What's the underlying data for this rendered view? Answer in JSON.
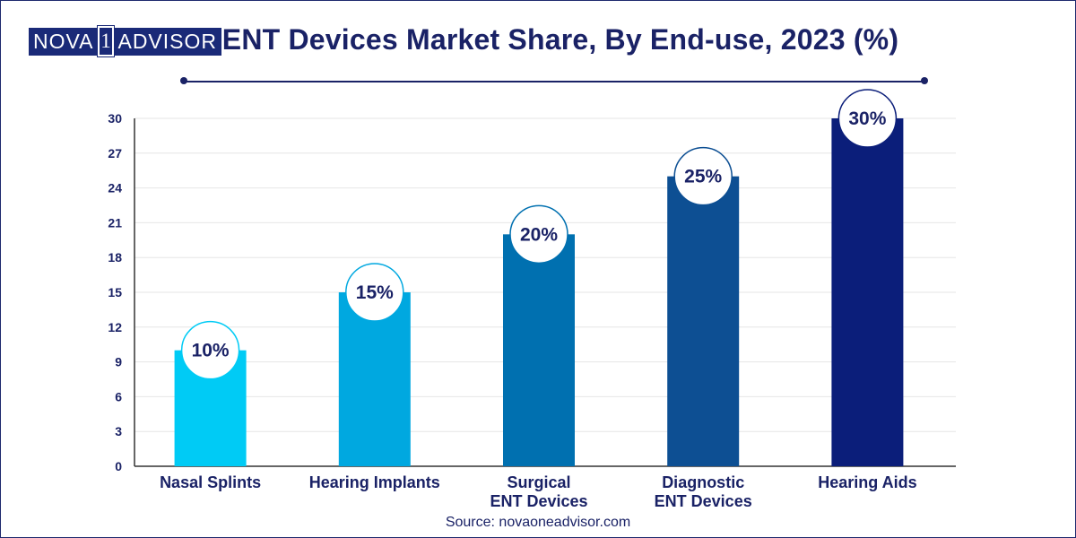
{
  "logo": {
    "part1": "NOVA",
    "part2": "1",
    "part3": "ADVISOR"
  },
  "source": "Source: novaoneadvisor.com",
  "chart_data": {
    "type": "bar",
    "title": "ENT Devices Market Share, By End-use, 2023 (%)",
    "xlabel": "",
    "ylabel": "",
    "ylim": [
      0,
      30
    ],
    "yticks": [
      0,
      3,
      6,
      9,
      12,
      15,
      18,
      21,
      24,
      27,
      30
    ],
    "categories": [
      [
        "Nasal Splints"
      ],
      [
        "Hearing Implants"
      ],
      [
        "Surgical",
        "ENT Devices"
      ],
      [
        "Diagnostic",
        "ENT Devices"
      ],
      [
        "Hearing Aids"
      ]
    ],
    "values": [
      10,
      15,
      20,
      25,
      30
    ],
    "data_labels": [
      "10%",
      "15%",
      "20%",
      "25%",
      "30%"
    ],
    "colors": [
      "#00cbf5",
      "#00a8e0",
      "#0070b0",
      "#0d4f93",
      "#0b1e7a"
    ],
    "grid": true
  }
}
